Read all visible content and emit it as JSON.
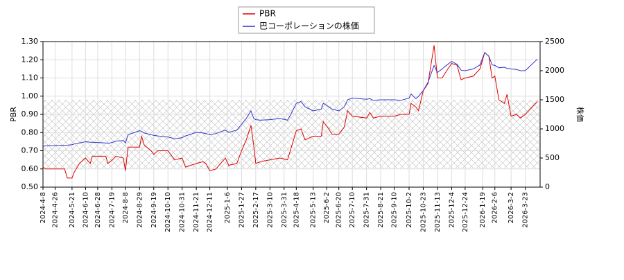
{
  "chart_data": {
    "type": "line",
    "x": [
      "2024-4-8",
      "2024-4-12",
      "2024-5-10",
      "2024-5-14",
      "2024-5-21",
      "2024-5-24",
      "2024-6-1",
      "2024-6-10",
      "2024-6-17",
      "2024-6-20",
      "2024-7-10",
      "2024-7-13",
      "2024-7-20",
      "2024-7-25",
      "2024-8-5",
      "2024-8-8",
      "2024-8-12",
      "2024-8-29",
      "2024-9-1",
      "2024-9-5",
      "2024-9-15",
      "2024-9-19",
      "2024-9-25",
      "2024-10-10",
      "2024-10-14",
      "2024-10-20",
      "2024-10-31",
      "2024-11-5",
      "2024-11-21",
      "2024-12-1",
      "2024-12-5",
      "2024-12-11",
      "2024-12-20",
      "2025-1-3",
      "2025-1-8",
      "2025-1-20",
      "2025-1-27",
      "2025-2-3",
      "2025-2-10",
      "2025-2-14",
      "2025-2-17",
      "2025-2-24",
      "2025-3-10",
      "2025-3-25",
      "2025-4-5",
      "2025-4-10",
      "2025-4-18",
      "2025-4-25",
      "2025-5-1",
      "2025-5-13",
      "2025-5-25",
      "2025-5-28",
      "2025-6-5",
      "2025-6-10",
      "2025-6-20",
      "2025-6-28",
      "2025-7-3",
      "2025-7-10",
      "2025-7-31",
      "2025-8-5",
      "2025-8-10",
      "2025-8-21",
      "2025-9-10",
      "2025-9-20",
      "2025-10-2",
      "2025-10-5",
      "2025-10-12",
      "2025-10-16",
      "2025-10-23",
      "2025-10-30",
      "2025-11-8",
      "2025-11-13",
      "2025-11-20",
      "2025-11-25",
      "2025-12-4",
      "2025-12-12",
      "2025-12-18",
      "2025-12-24",
      "2026-1-5",
      "2026-1-15",
      "2026-1-22",
      "2026-1-28",
      "2026-2-2",
      "2026-2-6",
      "2026-2-12",
      "2026-2-20",
      "2026-2-24",
      "2026-3-2",
      "2026-3-10",
      "2026-3-16",
      "2026-3-23",
      "2026-4-10"
    ],
    "series": [
      {
        "name": "PBR",
        "color": "#dd0000",
        "values": [
          0.61,
          0.6,
          0.6,
          0.55,
          0.55,
          0.58,
          0.63,
          0.66,
          0.63,
          0.67,
          0.67,
          0.63,
          0.65,
          0.67,
          0.66,
          0.59,
          0.72,
          0.72,
          0.78,
          0.73,
          0.7,
          0.68,
          0.7,
          0.7,
          0.68,
          0.65,
          0.66,
          0.61,
          0.63,
          0.64,
          0.63,
          0.59,
          0.6,
          0.66,
          0.62,
          0.63,
          0.7,
          0.76,
          0.84,
          0.73,
          0.63,
          0.64,
          0.65,
          0.66,
          0.65,
          0.71,
          0.81,
          0.82,
          0.76,
          0.78,
          0.78,
          0.86,
          0.82,
          0.79,
          0.79,
          0.83,
          0.92,
          0.89,
          0.88,
          0.91,
          0.88,
          0.89,
          0.89,
          0.9,
          0.9,
          0.96,
          0.94,
          0.92,
          1.03,
          1.07,
          1.28,
          1.1,
          1.1,
          1.13,
          1.18,
          1.17,
          1.09,
          1.1,
          1.11,
          1.15,
          1.24,
          1.22,
          1.1,
          1.11,
          0.98,
          0.96,
          1.01,
          0.89,
          0.9,
          0.88,
          0.9,
          0.97
        ]
      },
      {
        "name": "巴コーポレーションの株価",
        "color": "#3333cc",
        "axis": "y2",
        "values": [
          700,
          710,
          720,
          720,
          730,
          740,
          760,
          780,
          770,
          770,
          760,
          750,
          770,
          790,
          800,
          760,
          900,
          970,
          960,
          930,
          900,
          890,
          880,
          860,
          850,
          830,
          850,
          880,
          940,
          930,
          920,
          900,
          920,
          980,
          940,
          980,
          1080,
          1180,
          1310,
          1180,
          1160,
          1150,
          1160,
          1180,
          1150,
          1250,
          1440,
          1470,
          1380,
          1310,
          1340,
          1440,
          1380,
          1340,
          1310,
          1380,
          1500,
          1530,
          1510,
          1520,
          1490,
          1500,
          1500,
          1490,
          1530,
          1600,
          1520,
          1560,
          1660,
          1800,
          2090,
          1970,
          2030,
          2080,
          2160,
          2110,
          2010,
          2000,
          2030,
          2100,
          2310,
          2250,
          2100,
          2090,
          2050,
          2060,
          2040,
          2030,
          2020,
          2000,
          2000,
          2200
        ]
      }
    ],
    "y_label": "PBR",
    "y2_label": "株価",
    "xlim": [
      "2024-4-8",
      "2026-4-14"
    ],
    "xticks": [
      "2024-4-8",
      "2024-4-26",
      "2024-5-21",
      "2024-6-10",
      "2024-6-28",
      "2024-7-19",
      "2024-8-8",
      "2024-8-29",
      "2024-9-19",
      "2024-10-10",
      "2024-10-31",
      "2024-11-21",
      "2024-12-11",
      "2025-1-6",
      "2025-1-27",
      "2025-2-17",
      "2025-3-10",
      "2025-3-31",
      "2025-4-18",
      "2025-5-13",
      "2025-6-2",
      "2025-6-20",
      "2025-7-10",
      "2025-7-31",
      "2025-8-21",
      "2025-9-10",
      "2025-10-2",
      "2025-10-23",
      "2025-11-13",
      "2025-12-4",
      "2025-12-24",
      "2026-1-19",
      "2026-2-6",
      "2026-3-2",
      "2026-3-23"
    ],
    "ylim": [
      0.5,
      1.3
    ],
    "yticks": [
      {
        "value": 0.5,
        "label": "0.50"
      },
      {
        "value": 0.6,
        "label": "0.60"
      },
      {
        "value": 0.7,
        "label": "0.70"
      },
      {
        "value": 0.8,
        "label": "0.80"
      },
      {
        "value": 0.9,
        "label": "0.90"
      },
      {
        "value": 1.0,
        "label": "1.00"
      },
      {
        "value": 1.1,
        "label": "1.10"
      },
      {
        "value": 1.2,
        "label": "1.20"
      },
      {
        "value": 1.3,
        "label": "1.30"
      }
    ],
    "y2lim": [
      0,
      2500
    ],
    "y2ticks": [
      0,
      500,
      1000,
      1500,
      2000,
      2500
    ],
    "shaded_band": [
      0.6,
      0.98
    ],
    "grid": true,
    "legend": "top"
  }
}
